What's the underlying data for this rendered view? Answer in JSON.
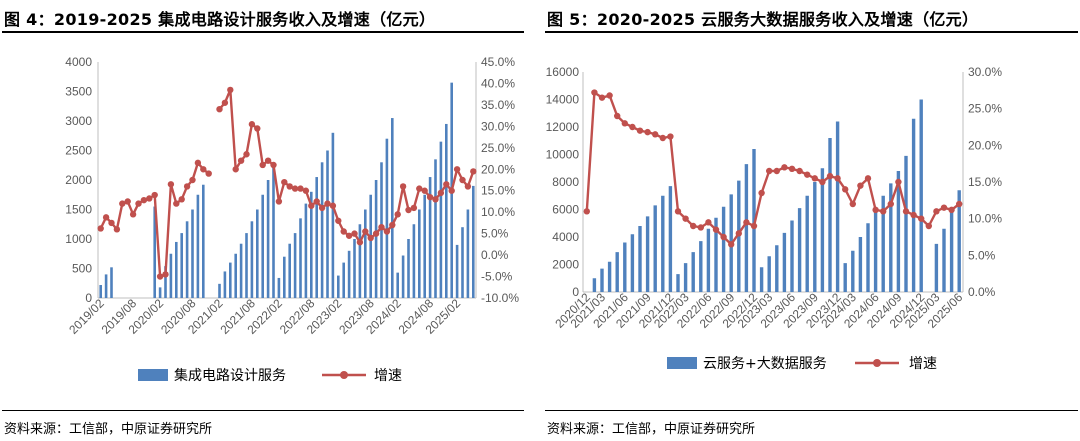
{
  "charts": [
    {
      "title": "图 4：2019-2025 集成电路设计服务收入及增速（亿元）",
      "source": "资料来源：工信部，中原证券研究所",
      "chart_data": {
        "type": "bar+line",
        "categories": [
          "2019/02",
          "2019/03",
          "2019/04",
          "2019/05",
          "2019/06",
          "2019/07",
          "2019/08",
          "2019/09",
          "2019/10",
          "2019/11",
          "2019/12",
          "2020/02",
          "2020/03",
          "2020/04",
          "2020/05",
          "2020/06",
          "2020/07",
          "2020/08",
          "2020/09",
          "2020/10",
          "2020/11",
          "2020/12",
          "2021/02",
          "2021/03",
          "2021/04",
          "2021/05",
          "2021/06",
          "2021/07",
          "2021/08",
          "2021/09",
          "2021/10",
          "2021/11",
          "2021/12",
          "2022/02",
          "2022/03",
          "2022/04",
          "2022/05",
          "2022/06",
          "2022/07",
          "2022/08",
          "2022/09",
          "2022/10",
          "2022/11",
          "2022/12",
          "2023/02",
          "2023/03",
          "2023/04",
          "2023/05",
          "2023/06",
          "2023/07",
          "2023/08",
          "2023/09",
          "2023/10",
          "2023/11",
          "2023/12",
          "2024/02",
          "2024/03",
          "2024/04",
          "2024/05",
          "2024/06",
          "2024/07",
          "2024/08",
          "2024/09",
          "2024/10",
          "2024/11",
          "2024/12",
          "2025/02",
          "2025/03",
          "2025/04",
          "2025/05"
        ],
        "x_tick_labels": [
          "2019/02",
          "2019/08",
          "2020/02",
          "2020/08",
          "2021/02",
          "2021/08",
          "2022/02",
          "2022/08",
          "2023/02",
          "2023/08",
          "2024/02",
          "2024/08",
          "2025/02"
        ],
        "x_tick_indices": [
          0,
          6,
          11,
          17,
          22,
          28,
          33,
          39,
          44,
          50,
          55,
          61,
          66
        ],
        "series": [
          {
            "name": "集成电路设计服务",
            "type": "bar",
            "axis": "left",
            "values": [
              220,
              400,
              520,
              null,
              null,
              null,
              null,
              null,
              null,
              null,
              1550,
              180,
              540,
              750,
              950,
              1100,
              1300,
              1500,
              1750,
              1920,
              null,
              null,
              240,
              450,
              600,
              750,
              920,
              1100,
              1300,
              1500,
              1750,
              2000,
              2300,
              340,
              700,
              920,
              1100,
              1350,
              1600,
              1800,
              2050,
              2300,
              2500,
              2800,
              380,
              600,
              800,
              1000,
              1250,
              1500,
              1750,
              2000,
              2300,
              2700,
              3050,
              430,
              720,
              1000,
              1250,
              1500,
              1750,
              2050,
              2350,
              2650,
              2950,
              3650,
              900,
              1200,
              1500,
              1900
            ]
          },
          {
            "name": "增速",
            "type": "line",
            "axis": "right",
            "values": [
              6.2,
              8.8,
              7.5,
              6.0,
              12.0,
              12.5,
              9.5,
              12.0,
              12.8,
              13.2,
              14.0,
              -5.0,
              -4.5,
              16.5,
              12.0,
              13.0,
              16.0,
              17.5,
              21.5,
              20.0,
              19.0,
              null,
              34.0,
              35.5,
              38.5,
              20.0,
              22.0,
              23.5,
              30.5,
              29.5,
              21.0,
              22.0,
              21.0,
              12.5,
              17.0,
              16.0,
              15.5,
              15.5,
              15.0,
              11.5,
              12.5,
              11.0,
              12.0,
              11.5,
              8.0,
              5.5,
              4.5,
              5.0,
              3.0,
              5.5,
              4.0,
              5.0,
              6.5,
              5.5,
              7.0,
              9.5,
              16.0,
              10.5,
              11.0,
              15.5,
              15.0,
              13.5,
              13.0,
              14.5,
              16.5,
              15.0,
              20.0,
              17.5,
              16.0,
              19.5
            ]
          }
        ],
        "left_axis": {
          "min": 0,
          "max": 4000,
          "ticks": [
            "0",
            "500",
            "1000",
            "1500",
            "2000",
            "2500",
            "3000",
            "3500",
            "4000"
          ]
        },
        "right_axis": {
          "min": -10,
          "max": 45,
          "ticks": [
            "-10.0%",
            "-5.0%",
            "0.0%",
            "5.0%",
            "10.0%",
            "15.0%",
            "20.0%",
            "25.0%",
            "30.0%",
            "35.0%",
            "40.0%",
            "45.0%"
          ]
        },
        "legend": {
          "placement": "bottom",
          "bar_label": "集成电路设计服务",
          "line_label": "增速"
        },
        "bar_color": "#4f81bd",
        "line_color": "#c0504d"
      }
    },
    {
      "title": "图 5：2020-2025 云服务大数据服务收入及增速（亿元）",
      "source": "资料来源：工信部，中原证券研究所",
      "chart_data": {
        "type": "bar+line",
        "categories": [
          "2020/12",
          "2021/02",
          "2021/03",
          "2021/04",
          "2021/05",
          "2021/06",
          "2021/07",
          "2021/08",
          "2021/09",
          "2021/10",
          "2021/11",
          "2021/12",
          "2022/02",
          "2022/03",
          "2022/04",
          "2022/05",
          "2022/06",
          "2022/07",
          "2022/08",
          "2022/09",
          "2022/10",
          "2022/11",
          "2022/12",
          "2023/02",
          "2023/03",
          "2023/04",
          "2023/05",
          "2023/06",
          "2023/07",
          "2023/08",
          "2023/09",
          "2023/10",
          "2023/11",
          "2023/12",
          "2024/02",
          "2024/03",
          "2024/04",
          "2024/05",
          "2024/06",
          "2024/07",
          "2024/08",
          "2024/09",
          "2024/10",
          "2024/11",
          "2024/12",
          "2025/02",
          "2025/03",
          "2025/04",
          "2025/05",
          "2025/06"
        ],
        "x_tick_labels": [
          "2020/12",
          "2021/03",
          "2021/06",
          "2021/09",
          "2021/12",
          "2022/03",
          "2022/06",
          "2022/09",
          "2022/12",
          "2023/03",
          "2023/06",
          "2023/09",
          "2023/12",
          "2024/03",
          "2024/06",
          "2024/09",
          "2024/12",
          "2025/03",
          "2025/06"
        ],
        "x_tick_indices": [
          0,
          2,
          5,
          8,
          11,
          13,
          16,
          19,
          22,
          24,
          27,
          30,
          33,
          35,
          38,
          41,
          44,
          46,
          49
        ],
        "series": [
          {
            "name": "云服务+大数据服务",
            "type": "bar",
            "axis": "left",
            "values": [
              null,
              1000,
              1700,
              2200,
              2900,
              3600,
              4200,
              4800,
              5500,
              6300,
              7000,
              7700,
              1300,
              2100,
              2900,
              3700,
              4600,
              5400,
              6200,
              7100,
              8100,
              9300,
              10400,
              1800,
              2600,
              3400,
              4300,
              5200,
              6100,
              7000,
              8000,
              9000,
              11200,
              12400,
              2100,
              3000,
              4000,
              5000,
              6000,
              7000,
              7900,
              8800,
              9900,
              12600,
              14000,
              null,
              3500,
              4600,
              5900,
              7400
            ]
          },
          {
            "name": "增速",
            "type": "line",
            "axis": "right",
            "values": [
              11.0,
              27.2,
              26.5,
              26.8,
              24.0,
              23.0,
              22.5,
              22.0,
              21.8,
              21.5,
              21.0,
              21.2,
              11.0,
              10.0,
              9.0,
              8.8,
              9.5,
              8.5,
              7.5,
              6.5,
              8.0,
              9.5,
              9.0,
              13.5,
              16.5,
              16.5,
              17.0,
              16.8,
              16.5,
              16.0,
              15.5,
              15.0,
              15.8,
              15.5,
              14.0,
              12.0,
              14.5,
              15.5,
              11.2,
              11.0,
              12.0,
              15.0,
              11.0,
              10.5,
              10.0,
              9.0,
              11.0,
              11.5,
              11.2,
              12.0
            ]
          }
        ],
        "left_axis": {
          "min": 0,
          "max": 16000,
          "ticks": [
            "0",
            "2000",
            "4000",
            "6000",
            "8000",
            "10000",
            "12000",
            "14000",
            "16000"
          ]
        },
        "right_axis": {
          "min": 0,
          "max": 30,
          "ticks": [
            "0.0%",
            "5.0%",
            "10.0%",
            "15.0%",
            "20.0%",
            "25.0%",
            "30.0%"
          ]
        },
        "legend": {
          "placement": "bottom",
          "bar_label": "云服务+大数据服务",
          "line_label": "增速"
        },
        "bar_color": "#4f81bd",
        "line_color": "#c0504d"
      }
    }
  ]
}
